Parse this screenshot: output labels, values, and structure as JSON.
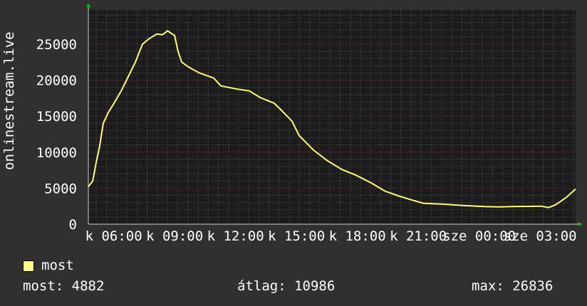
{
  "chart_data": {
    "type": "line",
    "ylabel": "onlinestream.live",
    "ylim": [
      0,
      28000
    ],
    "yticks": [
      "0",
      "5000",
      "10000",
      "15000",
      "20000",
      "25000"
    ],
    "xticks": [
      "k 06:00",
      "k 09:00",
      "k 12:00",
      "k 15:00",
      "k 18:00",
      "k 21:00",
      "sze 00:00",
      "sze 03:00"
    ],
    "grid": true,
    "line_color": "#ffff70",
    "series": [
      {
        "name": "most",
        "points": [
          [
            "05:06",
            5200
          ],
          [
            "05:19",
            6000
          ],
          [
            "05:29",
            8500
          ],
          [
            "05:40",
            11000
          ],
          [
            "05:50",
            14000
          ],
          [
            "06:05",
            15500
          ],
          [
            "06:22",
            16800
          ],
          [
            "06:43",
            18500
          ],
          [
            "07:04",
            20500
          ],
          [
            "07:25",
            22500
          ],
          [
            "07:46",
            25000
          ],
          [
            "08:07",
            25800
          ],
          [
            "08:28",
            26400
          ],
          [
            "08:45",
            26300
          ],
          [
            "09:00",
            26836
          ],
          [
            "09:21",
            26200
          ],
          [
            "09:31",
            24000
          ],
          [
            "09:42",
            22500
          ],
          [
            "10:03",
            21800
          ],
          [
            "10:34",
            21000
          ],
          [
            "11:16",
            20300
          ],
          [
            "11:38",
            19200
          ],
          [
            "12:20",
            18800
          ],
          [
            "13:02",
            18500
          ],
          [
            "13:33",
            17600
          ],
          [
            "14:15",
            16800
          ],
          [
            "14:37",
            15800
          ],
          [
            "15:08",
            14300
          ],
          [
            "15:29",
            12300
          ],
          [
            "16:11",
            10300
          ],
          [
            "16:53",
            8800
          ],
          [
            "17:35",
            7600
          ],
          [
            "18:17",
            6800
          ],
          [
            "18:59",
            5800
          ],
          [
            "19:42",
            4600
          ],
          [
            "20:24",
            3900
          ],
          [
            "21:06",
            3300
          ],
          [
            "21:37",
            2900
          ],
          [
            "22:30",
            2800
          ],
          [
            "23:33",
            2600
          ],
          [
            "00:36",
            2450
          ],
          [
            "01:18",
            2400
          ],
          [
            "02:00",
            2450
          ],
          [
            "03:25",
            2500
          ],
          [
            "03:46",
            2300
          ],
          [
            "04:07",
            2700
          ],
          [
            "04:38",
            3700
          ],
          [
            "05:06",
            4882
          ]
        ]
      }
    ],
    "legend": {
      "label": "most",
      "color": "#ffff80"
    },
    "stats": {
      "current": "most: 4882",
      "average": "átlag: 10986",
      "max": "max: 26836"
    }
  }
}
